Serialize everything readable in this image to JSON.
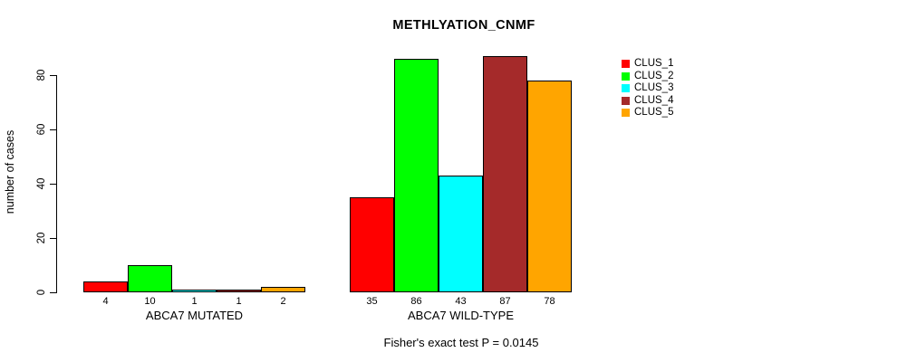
{
  "chart_data": {
    "type": "bar",
    "title": "METHLYATION_CNMF",
    "ylabel": "number of cases",
    "xlabel": "",
    "ylim": [
      0,
      80
    ],
    "yticks": [
      0,
      20,
      40,
      60,
      80
    ],
    "grid": false,
    "legend_position": "top-right",
    "categories": [
      "ABCA7 MUTATED",
      "ABCA7 WILD-TYPE"
    ],
    "series": [
      {
        "name": "CLUS_1",
        "color": "#ff0000",
        "values": [
          4,
          35
        ]
      },
      {
        "name": "CLUS_2",
        "color": "#00ff00",
        "values": [
          10,
          86
        ]
      },
      {
        "name": "CLUS_3",
        "color": "#00ffff",
        "values": [
          1,
          43
        ]
      },
      {
        "name": "CLUS_4",
        "color": "#a52a2a",
        "values": [
          1,
          87
        ]
      },
      {
        "name": "CLUS_5",
        "color": "#ffa500",
        "values": [
          2,
          78
        ]
      }
    ],
    "bar_value_labels": [
      [
        "4",
        "10",
        "1",
        "1",
        "2"
      ],
      [
        "35",
        "86",
        "43",
        "87",
        "78"
      ]
    ],
    "annotation": "Fisher's exact test P = 0.0145"
  }
}
